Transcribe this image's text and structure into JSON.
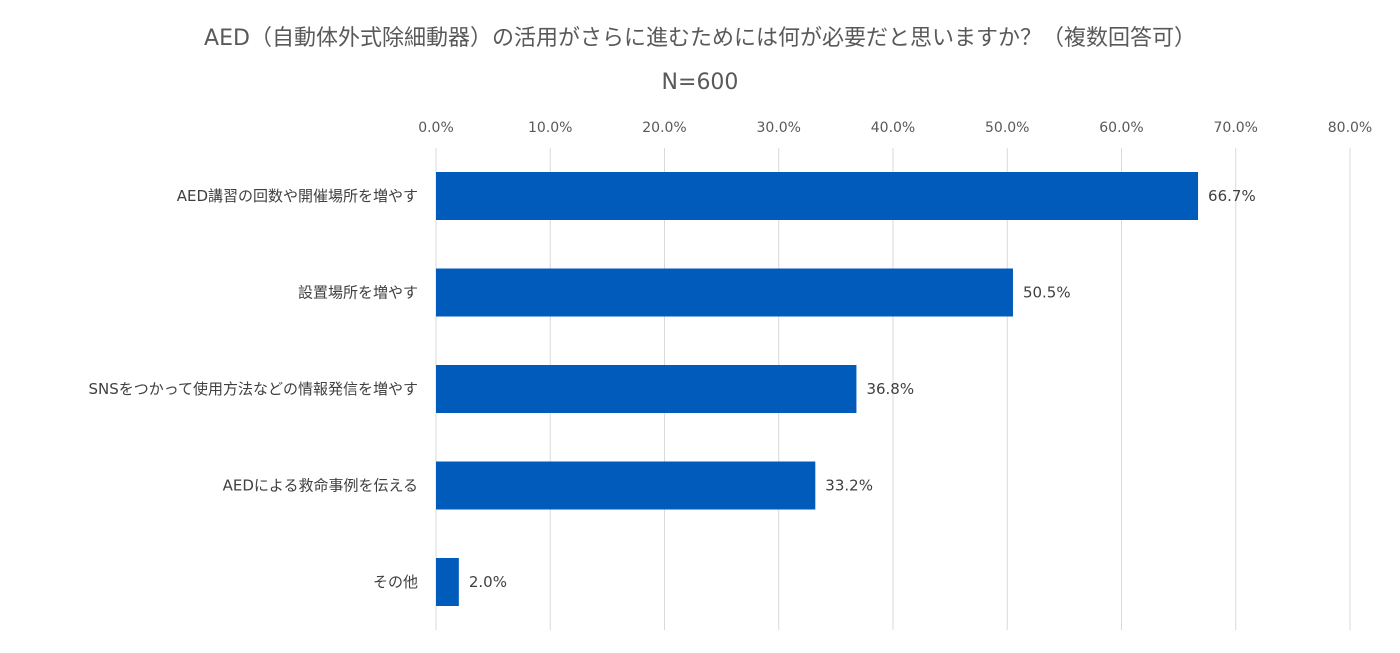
{
  "chart_data": {
    "type": "bar",
    "orientation": "horizontal",
    "title": "AED（自動体外式除細動器）の活用がさらに進むためには何が必要だと思いますか？（複数回答可）",
    "subtitle": "N=600",
    "categories": [
      "AED講習の回数や開催場所を増やす",
      "設置場所を増やす",
      "SNSをつかって使用方法などの情報発信を増やす",
      "AEDによる救命事例を伝える",
      "その他"
    ],
    "values": [
      66.7,
      50.5,
      36.8,
      33.2,
      2.0
    ],
    "data_labels": [
      "66.7%",
      "50.5%",
      "36.8%",
      "33.2%",
      "2.0%"
    ],
    "xlim": [
      0,
      80
    ],
    "x_ticks": [
      "0.0%",
      "10.0%",
      "20.0%",
      "30.0%",
      "40.0%",
      "50.0%",
      "60.0%",
      "70.0%",
      "80.0%"
    ],
    "x_tick_values": [
      0,
      10,
      20,
      30,
      40,
      50,
      60,
      70,
      80
    ],
    "x_axis_position": "top",
    "grid": true,
    "legend": "none",
    "colors": {
      "bar": "#005bbb",
      "grid": "#d9d9d9",
      "text": "#595959"
    }
  }
}
